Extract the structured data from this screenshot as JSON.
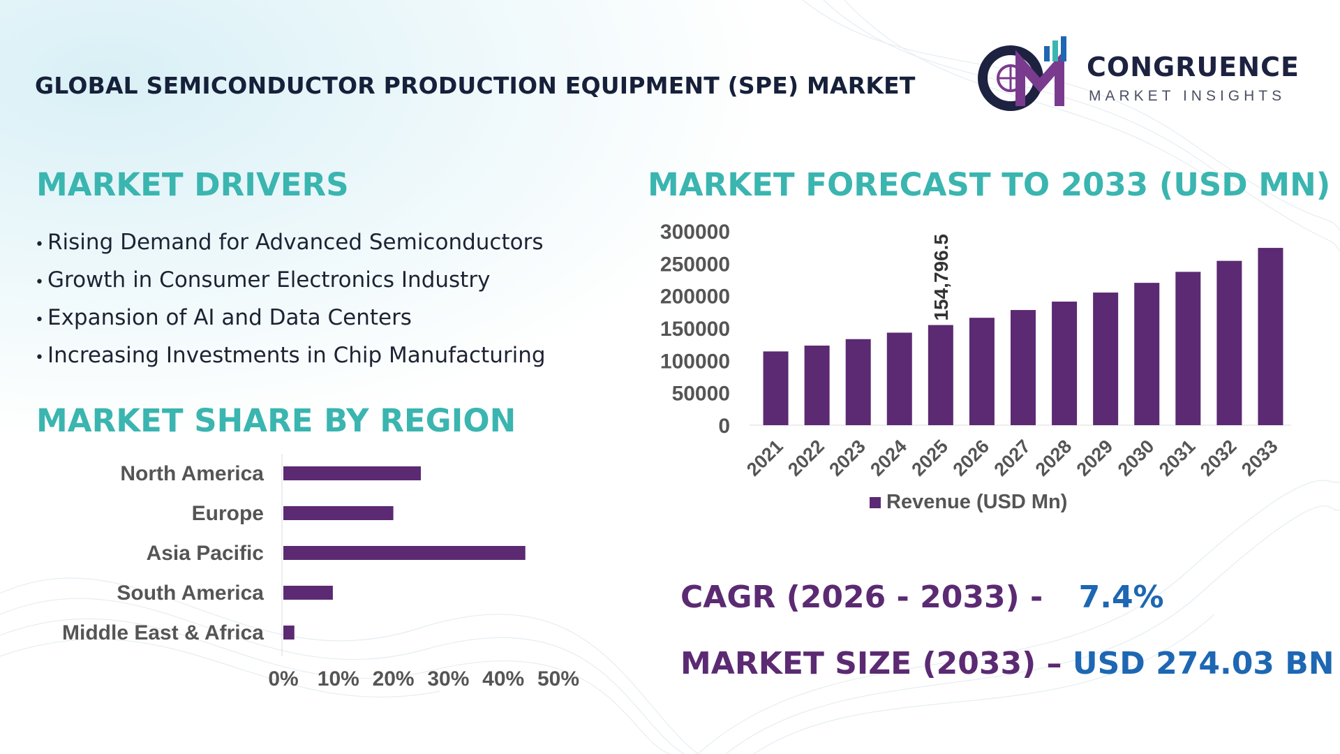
{
  "header": {
    "title": "GLOBAL SEMICONDUCTOR PRODUCTION EQUIPMENT (SPE) MARKET",
    "logo_line1": "CONGRUENCE",
    "logo_line2": "MARKET INSIGHTS"
  },
  "drivers": {
    "heading": "MARKET DRIVERS",
    "items": [
      "Rising Demand for Advanced Semiconductors",
      "Growth in Consumer Electronics Industry",
      "Expansion of AI and Data Centers",
      "Increasing Investments in Chip Manufacturing"
    ]
  },
  "region": {
    "heading": "MARKET SHARE BY REGION"
  },
  "forecast": {
    "heading": "MARKET FORECAST TO 2033 (USD MN)"
  },
  "stats": {
    "cagr_label": "CAGR (2026 - 2033) -",
    "cagr_value": "7.4%",
    "size_label": "MARKET SIZE (2033) –",
    "size_value": "USD 274.03 BN"
  },
  "colors": {
    "bar": "#5b2a72",
    "heading": "#3ab5b0",
    "accent_blue": "#1d67b3",
    "title": "#16203a"
  },
  "chart_data": [
    {
      "type": "bar",
      "orientation": "horizontal",
      "categories": [
        "North America",
        "Europe",
        "Asia Pacific",
        "South America",
        "Middle East & Africa"
      ],
      "values": [
        25,
        20,
        44,
        9,
        2
      ],
      "xlim": [
        0,
        50
      ],
      "ticks": [
        "0%",
        "10%",
        "20%",
        "30%",
        "40%",
        "50%"
      ],
      "grid": false
    },
    {
      "type": "bar",
      "categories": [
        "2021",
        "2022",
        "2023",
        "2024",
        "2025",
        "2026",
        "2027",
        "2028",
        "2029",
        "2030",
        "2031",
        "2032",
        "2033"
      ],
      "series": [
        {
          "name": "Revenue (USD Mn)",
          "values": [
            114000,
            123000,
            133000,
            143000,
            154796.5,
            166000,
            178000,
            191000,
            205000,
            220000,
            237000,
            254000,
            274030
          ]
        }
      ],
      "ylim": [
        0,
        300000
      ],
      "yticks": [
        "0",
        "50000",
        "100000",
        "150000",
        "200000",
        "250000",
        "300000"
      ],
      "data_labels": [
        {
          "category": "2025",
          "text": "154,796.5"
        }
      ],
      "legend": "bottom",
      "grid": false
    }
  ]
}
